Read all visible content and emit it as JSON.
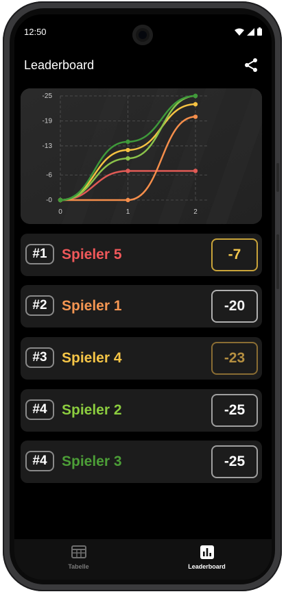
{
  "status_bar": {
    "time": "12:50"
  },
  "app_bar": {
    "title": "Leaderboard",
    "share_icon": "share-icon"
  },
  "chart_data": {
    "type": "line",
    "x": [
      0,
      1,
      2
    ],
    "xticks": [
      "0",
      "1",
      "2"
    ],
    "yticks": [
      "-25",
      "-19",
      "-13",
      "-6",
      "-0"
    ],
    "ylim": [
      0,
      -25
    ],
    "grid": true,
    "series": [
      {
        "color": "#e05a55",
        "values": [
          0,
          -7,
          -7
        ]
      },
      {
        "color": "#f58e4b",
        "values": [
          0,
          0,
          -20
        ]
      },
      {
        "color": "#f5c242",
        "values": [
          0,
          -12,
          -23
        ]
      },
      {
        "color": "#8bc34a",
        "values": [
          0,
          -10,
          -25
        ]
      },
      {
        "color": "#3f9a3a",
        "values": [
          0,
          -14,
          -25
        ]
      }
    ]
  },
  "leaderboard": [
    {
      "rank": "#1",
      "name": "Spieler 5",
      "score": "-7",
      "name_color": "#f0585a",
      "score_color": "#f2c64d",
      "border_color": "#c9a43a"
    },
    {
      "rank": "#2",
      "name": "Spieler 1",
      "score": "-20",
      "name_color": "#f59652",
      "score_color": "#f2f2f2",
      "border_color": "#b0b0b0"
    },
    {
      "rank": "#3",
      "name": "Spieler 4",
      "score": "-23",
      "name_color": "#f5c547",
      "score_color": "#b58f40",
      "border_color": "#8a6d33"
    },
    {
      "rank": "#4",
      "name": "Spieler 2",
      "score": "-25",
      "name_color": "#8ccd3f",
      "score_color": "#ffffff",
      "border_color": "#a0a0a0"
    },
    {
      "rank": "#4",
      "name": "Spieler 3",
      "score": "-25",
      "name_color": "#4c9e37",
      "score_color": "#ffffff",
      "border_color": "#a0a0a0"
    }
  ],
  "bottom_nav": [
    {
      "label": "Tabelle",
      "icon": "table-icon",
      "active": false
    },
    {
      "label": "Leaderboard",
      "icon": "bar-chart-icon",
      "active": true
    }
  ]
}
